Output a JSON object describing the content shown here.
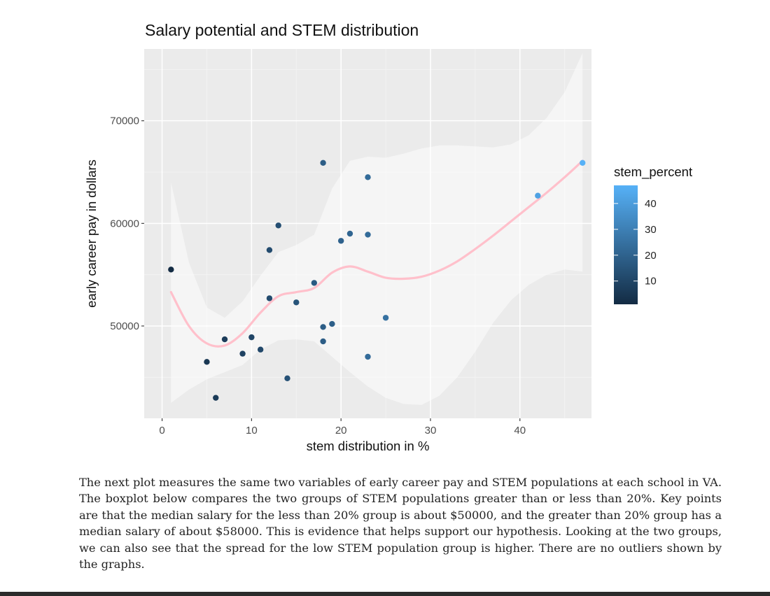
{
  "chart_data": {
    "type": "scatter",
    "title": "Salary potential and STEM distribution",
    "xlabel": "stem distribution in %",
    "ylabel": "early career pay in dollars",
    "xlim": [
      -2,
      48
    ],
    "ylim": [
      41000,
      77000
    ],
    "x_ticks": [
      0,
      10,
      20,
      30,
      40
    ],
    "y_ticks": [
      50000,
      60000,
      70000
    ],
    "grid": true,
    "legend": {
      "title": "stem_percent",
      "position": "right",
      "type": "colorbar",
      "ticks": [
        10,
        20,
        30,
        40
      ],
      "range": [
        1,
        47
      ],
      "color_low": "#132b43",
      "color_high": "#56b1f7"
    },
    "smooth": {
      "method": "loess",
      "color": "#ffc0cb",
      "x": [
        1,
        3,
        5,
        7,
        9,
        11,
        13,
        15,
        17,
        19,
        21,
        23,
        25,
        27,
        29,
        31,
        33,
        35,
        37,
        39,
        41,
        43,
        45,
        47
      ],
      "y": [
        53300,
        50000,
        48300,
        48100,
        49300,
        51300,
        52900,
        53300,
        53700,
        55200,
        55800,
        55300,
        54700,
        54600,
        54800,
        55400,
        56300,
        57500,
        58800,
        60200,
        61600,
        63000,
        64500,
        66100
      ],
      "ci_lower": [
        42500,
        43800,
        44800,
        45500,
        46200,
        47700,
        48600,
        48700,
        48500,
        47000,
        45500,
        44100,
        43000,
        42400,
        42300,
        43200,
        45000,
        47500,
        50300,
        52500,
        54000,
        55000,
        55500,
        55300
      ],
      "ci_upper": [
        64000,
        56200,
        51800,
        50800,
        52400,
        54900,
        57200,
        57900,
        58900,
        63400,
        66100,
        66500,
        66400,
        66800,
        67300,
        67600,
        67600,
        67500,
        67400,
        67700,
        68600,
        70300,
        72800,
        76600
      ]
    },
    "points": [
      {
        "x": 1,
        "y": 55500
      },
      {
        "x": 5,
        "y": 46500
      },
      {
        "x": 6,
        "y": 43000
      },
      {
        "x": 7,
        "y": 48700
      },
      {
        "x": 9,
        "y": 47300
      },
      {
        "x": 10,
        "y": 48900
      },
      {
        "x": 11,
        "y": 47700
      },
      {
        "x": 12,
        "y": 52700
      },
      {
        "x": 12,
        "y": 57400
      },
      {
        "x": 13,
        "y": 59800
      },
      {
        "x": 14,
        "y": 44900
      },
      {
        "x": 15,
        "y": 52300
      },
      {
        "x": 17,
        "y": 54200
      },
      {
        "x": 18,
        "y": 65900
      },
      {
        "x": 18,
        "y": 49900
      },
      {
        "x": 18,
        "y": 48500
      },
      {
        "x": 19,
        "y": 50200
      },
      {
        "x": 20,
        "y": 58300
      },
      {
        "x": 21,
        "y": 59000
      },
      {
        "x": 23,
        "y": 64500
      },
      {
        "x": 23,
        "y": 58900
      },
      {
        "x": 23,
        "y": 47000
      },
      {
        "x": 25,
        "y": 50800
      },
      {
        "x": 42,
        "y": 62700
      },
      {
        "x": 47,
        "y": 65900
      }
    ]
  },
  "body_text": "The next plot measures the same two variables of early career pay and STEM populations at each school in VA. The boxplot below compares the two groups of STEM populations greater than or less than 20%. Key points are that the median salary for the less than 20% group is about $50000, and the greater than 20% group has a median salary of about $58000. This is evidence that helps support our hypothesis. Looking at the two groups, we can also see that the spread for the low STEM population group is higher. There are no outliers shown by the graphs."
}
